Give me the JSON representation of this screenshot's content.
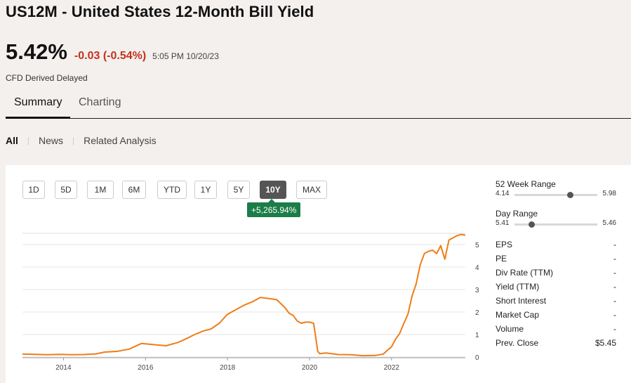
{
  "header": {
    "symbol": "US12M",
    "name": "- United States 12-Month Bill Yield",
    "price": "5.42%",
    "change": "-0.03 (-0.54%)",
    "time": "5:05 PM 10/20/23",
    "source_note": "CFD Derived Delayed"
  },
  "tabs": [
    "Summary",
    "Charting"
  ],
  "filters": [
    "All",
    "News",
    "Related Analysis"
  ],
  "ranges": {
    "buttons": [
      "1D",
      "5D",
      "1M",
      "6M",
      "YTD",
      "1Y",
      "5Y",
      "10Y",
      "MAX"
    ],
    "selected": "10Y",
    "badge": "+5,265.94%"
  },
  "stats": {
    "week52": {
      "label": "52 Week Range",
      "low": "4.14",
      "high": "5.98",
      "position": 0.67
    },
    "day": {
      "label": "Day Range",
      "low": "5.41",
      "high": "5.46",
      "position": 0.2
    },
    "rows": [
      {
        "label": "EPS",
        "value": "-"
      },
      {
        "label": "PE",
        "value": "-"
      },
      {
        "label": "Div Rate (TTM)",
        "value": "-"
      },
      {
        "label": "Yield (TTM)",
        "value": "-"
      },
      {
        "label": "Short Interest",
        "value": "-"
      },
      {
        "label": "Market Cap",
        "value": "-"
      },
      {
        "label": "Volume",
        "value": "-"
      },
      {
        "label": "Prev. Close",
        "value": "$5.45"
      }
    ]
  },
  "colors": {
    "line": "#ef7d17",
    "badge": "#1b7d47",
    "change": "#c5321b"
  },
  "chart_data": {
    "type": "line",
    "title": "",
    "xlabel": "",
    "ylabel": "",
    "grid": true,
    "xlim": [
      2013.0,
      2023.8
    ],
    "ylim": [
      0,
      5.5
    ],
    "x_ticks": [
      2014,
      2016,
      2018,
      2020,
      2022
    ],
    "x_tick_labels": [
      "2014",
      "2016",
      "2018",
      "2020",
      "2022"
    ],
    "y_ticks": [
      0,
      1,
      2,
      3,
      4,
      5
    ],
    "y_tick_labels": [
      "0",
      "1",
      "2",
      "3",
      "4",
      "5"
    ],
    "series": [
      {
        "x": [
          2013.0,
          2013.3,
          2013.6,
          2013.9,
          2014.2,
          2014.5,
          2014.8,
          2015.0,
          2015.3,
          2015.6,
          2015.9,
          2016.2,
          2016.5,
          2016.8,
          2017.0,
          2017.2,
          2017.4,
          2017.6,
          2017.8,
          2018.0,
          2018.2,
          2018.4,
          2018.6,
          2018.8,
          2019.0,
          2019.2,
          2019.4,
          2019.5,
          2019.6,
          2019.7,
          2019.8,
          2019.9,
          2020.0,
          2020.1,
          2020.15,
          2020.2,
          2020.25,
          2020.4,
          2020.7,
          2021.0,
          2021.3,
          2021.6,
          2021.8,
          2021.9,
          2022.0,
          2022.1,
          2022.2,
          2022.3,
          2022.4,
          2022.5,
          2022.6,
          2022.7,
          2022.8,
          2022.9,
          2023.0,
          2023.1,
          2023.2,
          2023.3,
          2023.4,
          2023.5,
          2023.6,
          2023.7,
          2023.8
        ],
        "y": [
          0.13,
          0.12,
          0.1,
          0.12,
          0.1,
          0.11,
          0.14,
          0.22,
          0.25,
          0.35,
          0.6,
          0.55,
          0.5,
          0.65,
          0.82,
          1.0,
          1.15,
          1.25,
          1.5,
          1.9,
          2.1,
          2.3,
          2.45,
          2.65,
          2.6,
          2.55,
          2.2,
          1.95,
          1.85,
          1.6,
          1.5,
          1.55,
          1.55,
          1.5,
          0.9,
          0.25,
          0.15,
          0.18,
          0.11,
          0.1,
          0.06,
          0.07,
          0.13,
          0.3,
          0.45,
          0.8,
          1.05,
          1.5,
          1.9,
          2.7,
          3.25,
          4.1,
          4.6,
          4.7,
          4.75,
          4.6,
          4.95,
          4.35,
          5.2,
          5.3,
          5.4,
          5.45,
          5.42
        ]
      }
    ]
  }
}
